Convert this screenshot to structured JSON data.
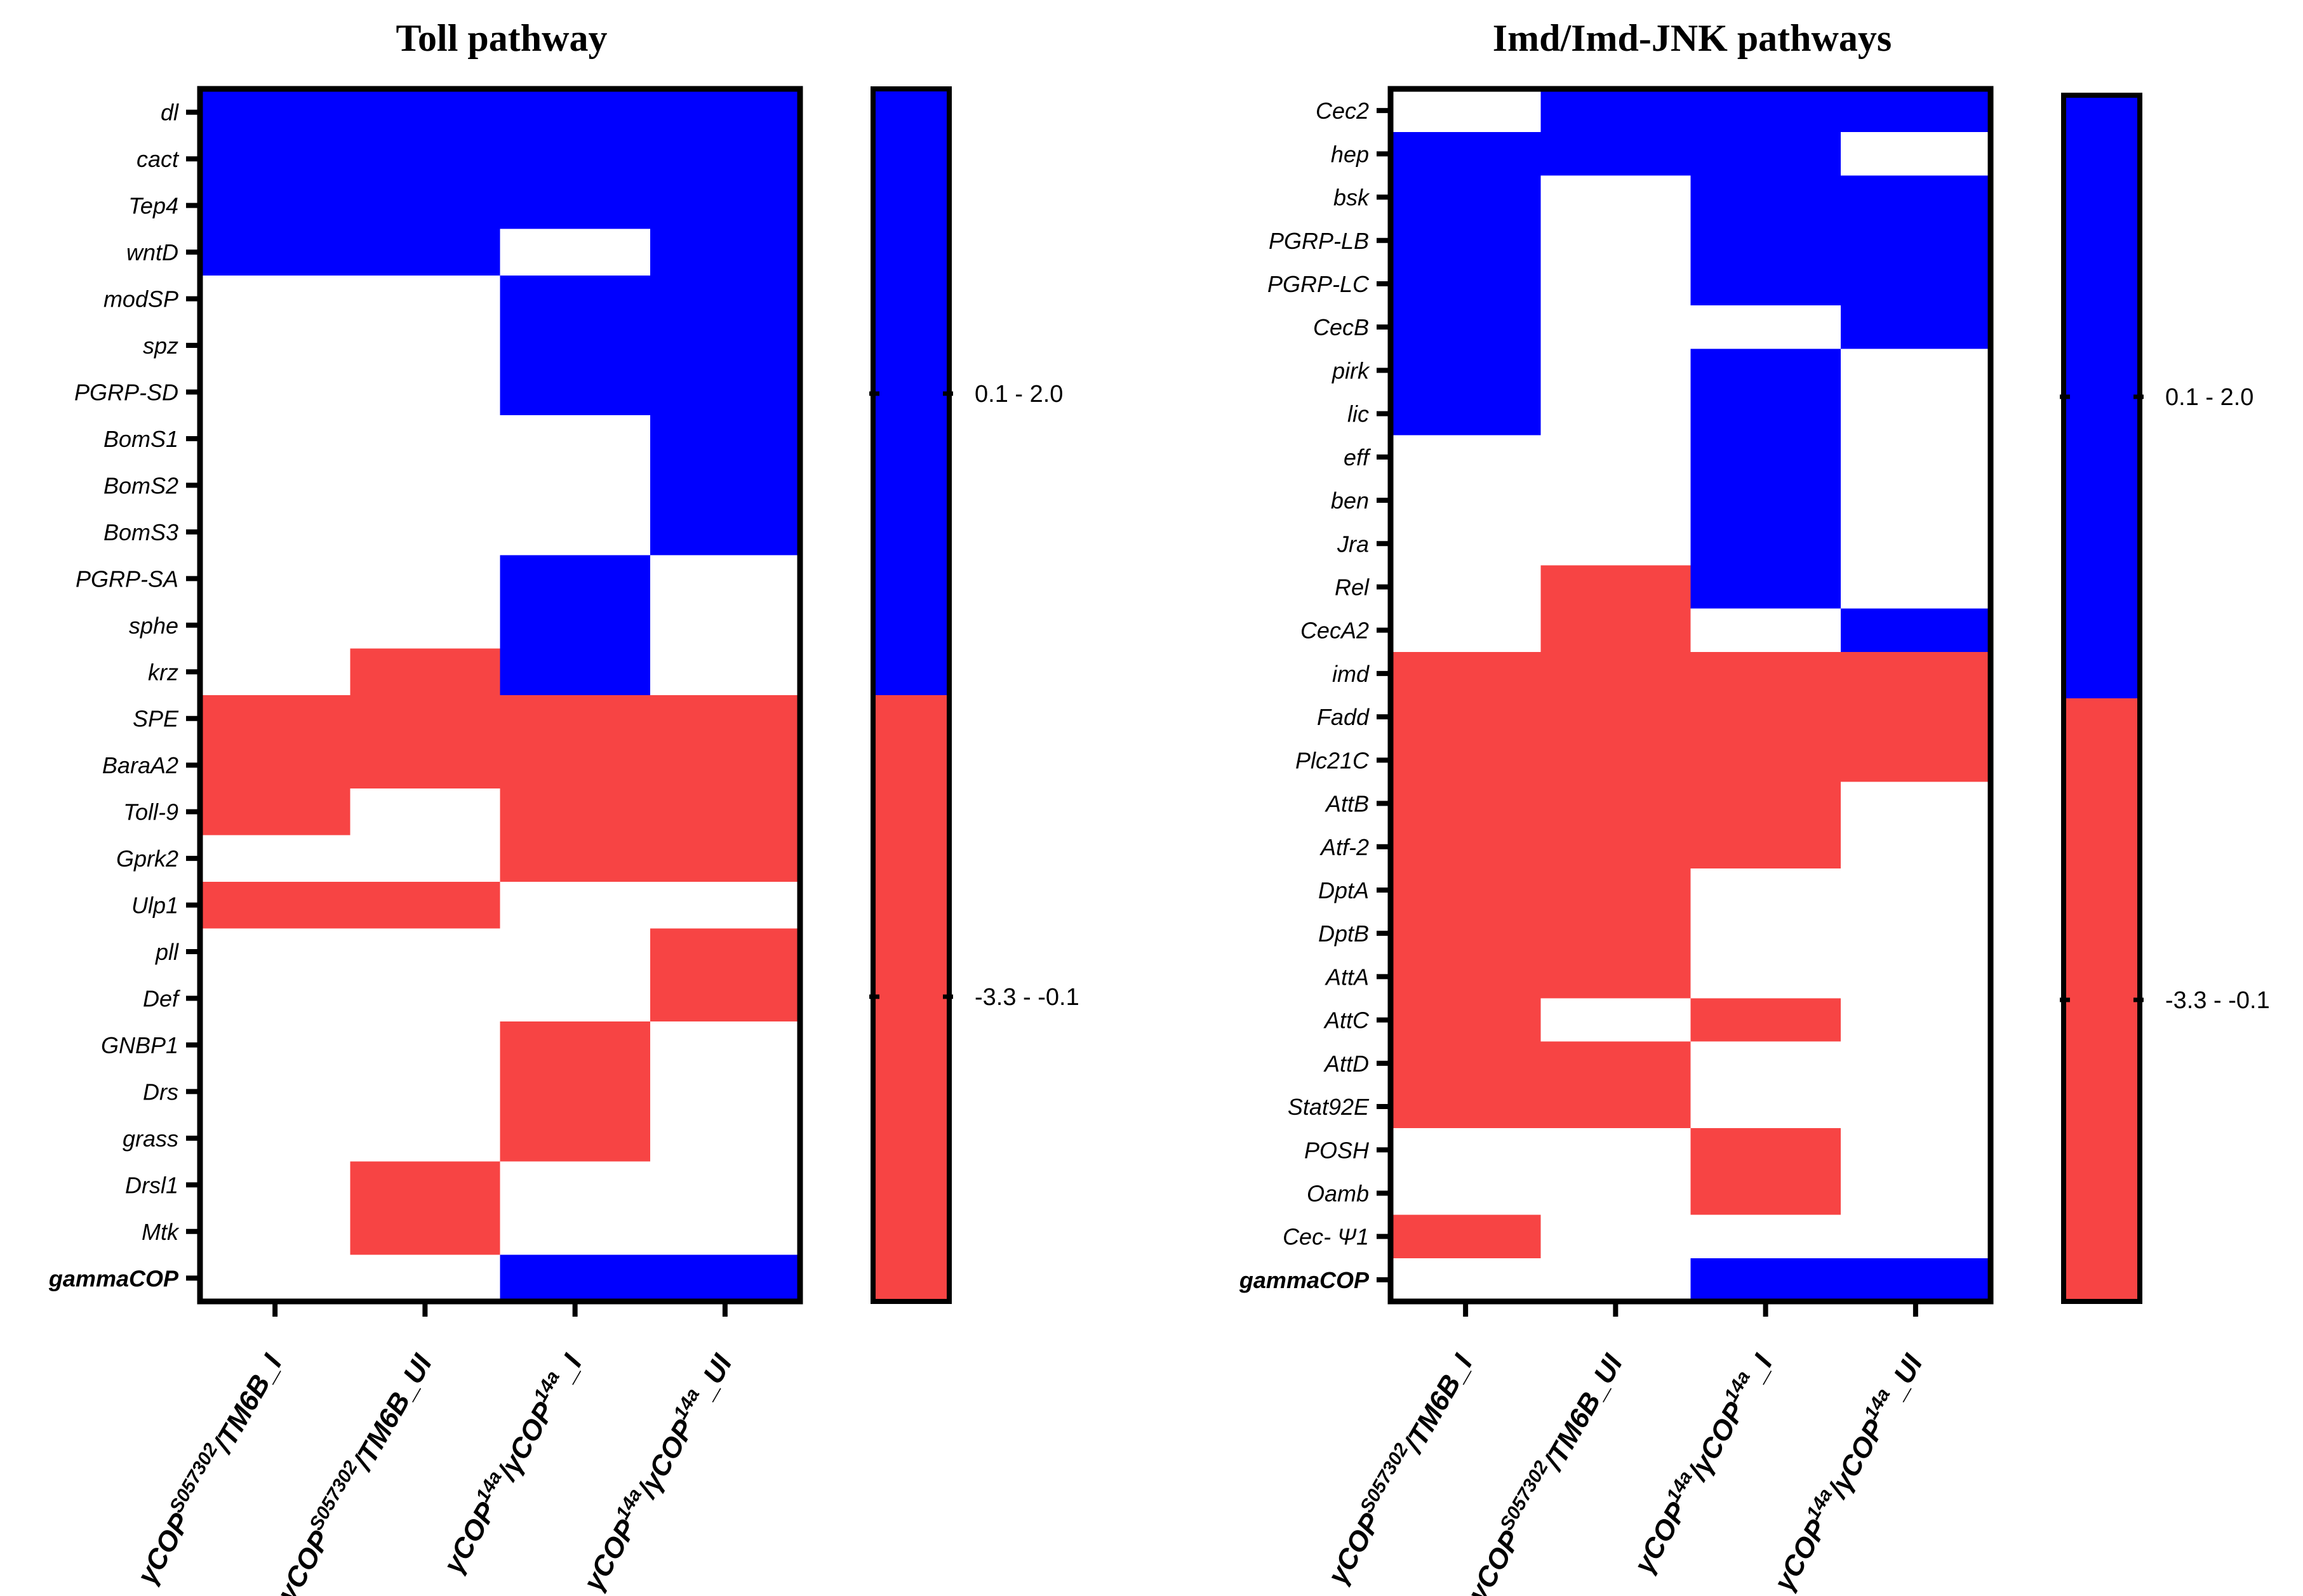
{
  "chart_data": [
    {
      "type": "heatmap",
      "title": "Toll pathway",
      "rows": [
        "dl",
        "cact",
        "Tep4",
        "wntD",
        "modSP",
        "spz",
        "PGRP-SD",
        "BomS1",
        "BomS2",
        "BomS3",
        "PGRP-SA",
        "sphe",
        "krz",
        "SPE",
        "BaraA2",
        "Toll-9",
        "Gprk2",
        "Ulp1",
        "pll",
        "Def",
        "GNBP1",
        "Drs",
        "grass",
        "Drsl1",
        "Mtk",
        "gammaCOP"
      ],
      "bold_rows": [
        "gammaCOP"
      ],
      "columns": [
        {
          "pre": "γ",
          "base": "COP",
          "sup": "S057302",
          "post": "/TM6B_I"
        },
        {
          "pre": "γ",
          "base": "COP",
          "sup": "S057302",
          "post": "/TM6B_UI"
        },
        {
          "pre": "γ",
          "base": "COP",
          "sup": "14a",
          "post": "/γCOP",
          "sup2": "14a",
          "post2": "_I"
        },
        {
          "pre": "γ",
          "base": "COP",
          "sup": "14a",
          "post": "/γCOP",
          "sup2": "14a",
          "post2": "_UI"
        }
      ],
      "cells": [
        [
          1,
          1,
          1,
          1
        ],
        [
          1,
          1,
          1,
          1
        ],
        [
          1,
          1,
          1,
          1
        ],
        [
          1,
          1,
          0,
          1
        ],
        [
          0,
          0,
          1,
          1
        ],
        [
          0,
          0,
          1,
          1
        ],
        [
          0,
          0,
          1,
          1
        ],
        [
          0,
          0,
          0,
          1
        ],
        [
          0,
          0,
          0,
          1
        ],
        [
          0,
          0,
          0,
          1
        ],
        [
          0,
          0,
          1,
          0
        ],
        [
          0,
          0,
          1,
          0
        ],
        [
          0,
          -1,
          1,
          0
        ],
        [
          -1,
          -1,
          -1,
          -1
        ],
        [
          -1,
          -1,
          -1,
          -1
        ],
        [
          -1,
          0,
          -1,
          -1
        ],
        [
          0,
          0,
          -1,
          -1
        ],
        [
          -1,
          -1,
          0,
          0
        ],
        [
          0,
          0,
          0,
          -1
        ],
        [
          0,
          0,
          0,
          -1
        ],
        [
          0,
          0,
          -1,
          0
        ],
        [
          0,
          0,
          -1,
          0
        ],
        [
          0,
          0,
          -1,
          0
        ],
        [
          0,
          -1,
          0,
          0
        ],
        [
          0,
          -1,
          0,
          0
        ],
        [
          0,
          0,
          1,
          1
        ]
      ],
      "cell_code_legend": {
        "1": "0.1 - 2.0",
        "-1": "-3.3 - -0.1",
        "0": "not shown"
      },
      "legend": [
        "0.1 - 2.0",
        "-3.3 - -0.1"
      ]
    },
    {
      "type": "heatmap",
      "title": "Imd/Imd-JNK pathways",
      "rows": [
        "Cec2",
        "hep",
        "bsk",
        "PGRP-LB",
        "PGRP-LC",
        "CecB",
        "pirk",
        "lic",
        "eff",
        "ben",
        "Jra",
        "Rel",
        "CecA2",
        "imd",
        "Fadd",
        "Plc21C",
        "AttB",
        "Atf-2",
        "DptA",
        "DptB",
        "AttA",
        "AttC",
        "AttD",
        "Stat92E",
        "POSH",
        "Oamb",
        "Cec- Ψ1",
        "gammaCOP"
      ],
      "bold_rows": [
        "gammaCOP"
      ],
      "columns": [
        {
          "pre": "γ",
          "base": "COP",
          "sup": "S057302",
          "post": "/TM6B_I"
        },
        {
          "pre": "γ",
          "base": "COP",
          "sup": "S057302",
          "post": "/TM6B_UI"
        },
        {
          "pre": "γ",
          "base": "COP",
          "sup": "14a",
          "post": "/γCOP",
          "sup2": "14a",
          "post2": "_I"
        },
        {
          "pre": "γ",
          "base": "COP",
          "sup": "14a",
          "post": "/γCOP",
          "sup2": "14a",
          "post2": "_UI"
        }
      ],
      "cells": [
        [
          0,
          1,
          1,
          1
        ],
        [
          1,
          1,
          1,
          0
        ],
        [
          1,
          0,
          1,
          1
        ],
        [
          1,
          0,
          1,
          1
        ],
        [
          1,
          0,
          1,
          1
        ],
        [
          1,
          0,
          0,
          1
        ],
        [
          1,
          0,
          1,
          0
        ],
        [
          1,
          0,
          1,
          0
        ],
        [
          0,
          0,
          1,
          0
        ],
        [
          0,
          0,
          1,
          0
        ],
        [
          0,
          0,
          1,
          0
        ],
        [
          0,
          -1,
          1,
          0
        ],
        [
          0,
          -1,
          0,
          1
        ],
        [
          -1,
          -1,
          -1,
          -1
        ],
        [
          -1,
          -1,
          -1,
          -1
        ],
        [
          -1,
          -1,
          -1,
          -1
        ],
        [
          -1,
          -1,
          -1,
          0
        ],
        [
          -1,
          -1,
          -1,
          0
        ],
        [
          -1,
          -1,
          0,
          0
        ],
        [
          -1,
          -1,
          0,
          0
        ],
        [
          -1,
          -1,
          0,
          0
        ],
        [
          -1,
          0,
          -1,
          0
        ],
        [
          -1,
          -1,
          0,
          0
        ],
        [
          -1,
          -1,
          0,
          0
        ],
        [
          0,
          0,
          -1,
          0
        ],
        [
          0,
          0,
          -1,
          0
        ],
        [
          -1,
          0,
          0,
          0
        ],
        [
          0,
          0,
          1,
          1
        ]
      ],
      "cell_code_legend": {
        "1": "0.1 - 2.0",
        "-1": "-3.3 - -0.1",
        "0": "not shown"
      },
      "legend": [
        "0.1 - 2.0",
        "-3.3 - -0.1"
      ]
    }
  ],
  "colors": {
    "up": "#0000ff",
    "down": "#f74444",
    "none": "#ffffff",
    "axis": "#000000"
  }
}
